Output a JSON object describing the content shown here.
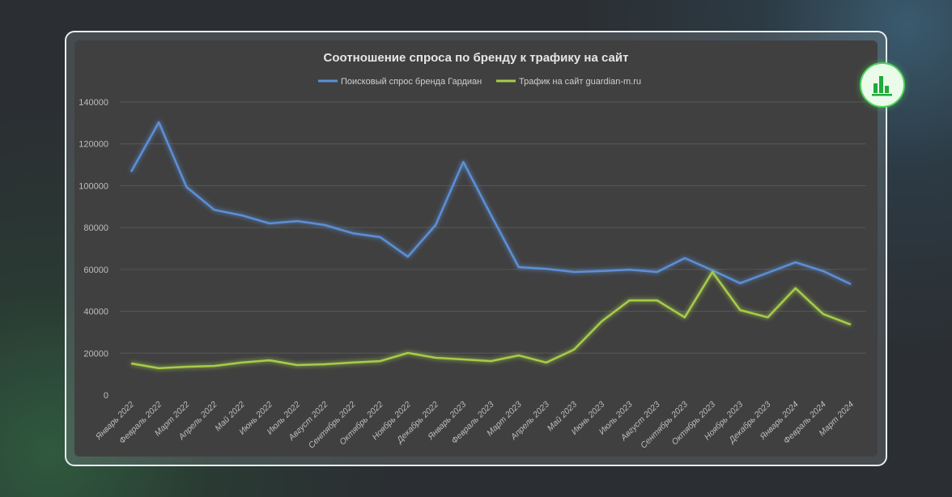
{
  "chart_data": {
    "type": "line",
    "title": "Соотношение спроса по бренду к трафику на сайт",
    "xlabel": "",
    "ylabel": "",
    "ylim": [
      0,
      140000
    ],
    "yticks": [
      "0",
      "20000",
      "40000",
      "60000",
      "80000",
      "100000",
      "120000",
      "140000"
    ],
    "grid": true,
    "legend_position": "top-center",
    "categories": [
      "Январь 2022",
      "Февраль 2022",
      "Март 2022",
      "Апрель 2022",
      "Май 2022",
      "Июнь 2022",
      "Июль 2022",
      "Август 2022",
      "Сентябрь 2022",
      "Октябрь 2022",
      "Ноябрь 2022",
      "Декабрь 2022",
      "Январь 2023",
      "Февраль 2023",
      "Март 2023",
      "Апрель 2023",
      "Май 2023",
      "Июнь 2023",
      "Июль 2023",
      "Август 2023",
      "Сентябрь 2023",
      "Октябрь 2023",
      "Ноябрь 2023",
      "Декабрь 2023",
      "Январь 2024",
      "Февраль 2024",
      "Март 2024"
    ],
    "series": [
      {
        "name": "Поисковый спрос бренда Гардиан",
        "color": "#5b8fd6",
        "values": [
          106700,
          130300,
          99400,
          88500,
          85800,
          82000,
          83100,
          81200,
          77300,
          75400,
          66100,
          81200,
          111400,
          86000,
          61100,
          60300,
          58800,
          59200,
          59900,
          58800,
          65400,
          59600,
          53400,
          58400,
          63400,
          59200,
          53000
        ]
      },
      {
        "name": "Трафик на сайт guardian-m.ru",
        "color": "#a6cc4a",
        "values": [
          15100,
          12800,
          13500,
          13900,
          15500,
          16600,
          14300,
          14700,
          15500,
          16200,
          20100,
          17800,
          17000,
          16200,
          18900,
          15500,
          21700,
          35200,
          45200,
          45200,
          37100,
          58800,
          40600,
          37100,
          51000,
          38700,
          33600
        ]
      }
    ]
  },
  "badge": {
    "icon": "bar-chart-icon",
    "color": "#1faa3a"
  }
}
